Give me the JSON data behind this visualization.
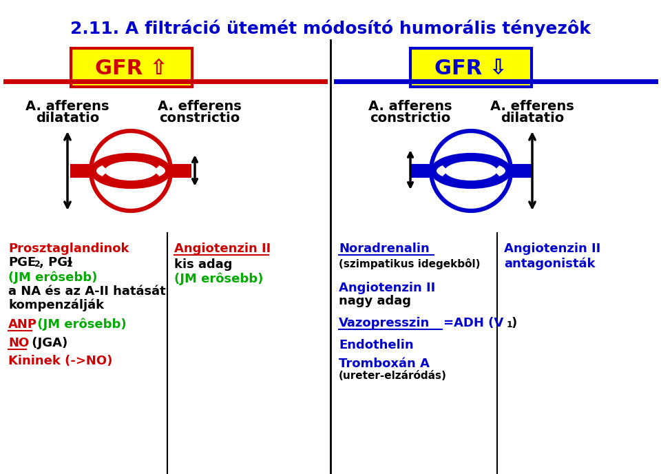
{
  "title": "2.11. A filtráció ütemét módosító humorális tényezôk",
  "title_color": "#0000CC",
  "bg_color": "#FFFFFF",
  "red": "#CC0000",
  "blue": "#0000CC",
  "green": "#00AA00",
  "black": "#000000",
  "yellow": "#FFFF00",
  "gfr_up_label": "GFR ⇧",
  "gfr_down_label": "GFR ⇩"
}
